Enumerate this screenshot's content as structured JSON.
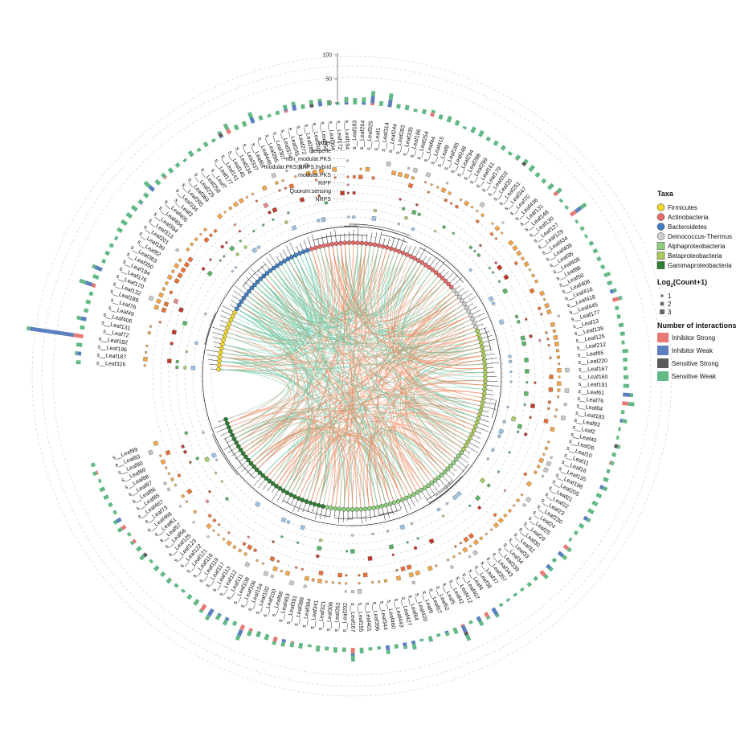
{
  "figure": {
    "leaves_order": [
      "s__Leaf326",
      "s__Leaf187",
      "s__Leaf196",
      "s__Leaf182",
      "s__Leaf72",
      "s__Leaf131",
      "s__Leaf406",
      "s__Leaf49",
      "s__Leaf76",
      "s__Leaf189",
      "s__Leaf132",
      "s__Leaf170",
      "s__Leaf176",
      "s__Leaf194",
      "s__Leaf350",
      "s__Leaf363",
      "s__Leaf82",
      "s__Leaf180",
      "s__Leaf201",
      "s__Leaf313",
      "s__Leaf394",
      "s__Leaf404",
      "s__Leaf405",
      "s__Leaf3",
      "s__Leaf334",
      "s__Leaf395",
      "s__Leaf369",
      "s__Leaf225",
      "s__Leaf258",
      "s__Leaf7",
      "s__Leaf177",
      "s__Leaf141",
      "s__Leaf145",
      "s__Leaf234",
      "s__Leaf337",
      "s__Leaf69",
      "s__Leaf446",
      "s__Leaf285",
      "s__Leaf307",
      "s__Leaf374",
      "s__Leaf245",
      "s__Leaf272",
      "s__Leaf289",
      "s__Leaf291",
      "s__Leaf350",
      "s__Leaf304",
      "s__Leaf172",
      "s__Leaf154",
      "s__Leaf183",
      "s__Leaf264",
      "s__Leaf325",
      "s__Leaf1",
      "s__Leaf314",
      "s__Leaf244",
      "s__Leaf283",
      "s__Leaf335",
      "s__Leaf186",
      "s__Leaf254",
      "s__Leaf44",
      "s__Leaf415",
      "s__Leaf8",
      "s__Leaf185",
      "s__Leaf248",
      "s__Leaf294",
      "s__Leaf298",
      "s__Leaf299",
      "s__Leaf161",
      "s__Leaf179",
      "s__Leaf203",
      "s__Leaf20",
      "s__Leaf251",
      "s__Leaf347",
      "s__Leaf70",
      "s__Leaf436",
      "s__Leaf131",
      "s__Leaf148",
      "s__Leaf130",
      "s__Leaf127",
      "s__Leaf129",
      "s__Leaf434",
      "s__Leaf408",
      "s__Leaf35",
      "s__Leaf408",
      "s__Leaf88",
      "s__Leaf50",
      "s__Leaf408",
      "s__Leaf416",
      "s__Leaf418",
      "s__Leaf445",
      "s__Leaf177",
      "s__Leaf13",
      "s__Leaf139",
      "s__Leaf125",
      "s__Leaf212",
      "s__Leaf65",
      "s__Leaf220",
      "s__Leaf167",
      "s__Leaf160",
      "s__Leaf191",
      "s__Leaf61",
      "s__Leaf76",
      "s__Leaf84",
      "s__Leaf183",
      "s__Leaf93",
      "s__Leaf2",
      "s__Leaf40",
      "s__Leaf26",
      "s__Leaf10",
      "s__Leaf11",
      "s__Leaf16",
      "s__Leaf135",
      "s__Leaf198",
      "s__Leaf205",
      "s__Leaf21",
      "s__Leaf22",
      "s__Leaf23",
      "s__Leaf230",
      "s__Leaf24",
      "s__Leaf25",
      "s__Leaf29",
      "s__Leaf30",
      "s__Leaf32",
      "s__Leaf33",
      "s__Leaf34",
      "s__Leaf339",
      "s__Leaf343",
      "s__Leaf357",
      "s__Leaf37",
      "s__Leaf38",
      "s__Leaf4",
      "s__Leaf407",
      "s__Leaf412",
      "s__Leaf42",
      "s__Leaf5",
      "s__Leaf62",
      "s__Leaf67",
      "s__Leaf9",
      "s__Leaf420",
      "s__Leaf64",
      "s__Leaf427",
      "s__Leaf443",
      "s__Leaf460",
      "s__Leaf344",
      "s__Leaf396",
      "s__Leaf401",
      "s__Leaf155",
      "s__Leaf167",
      "s__Leaf202",
      "s__Leaf262",
      "s__Leaf306",
      "s__Leaf321",
      "s__Leaf341",
      "s__Leaf384",
      "s__Leaf388",
      "s__Leaf391",
      "s__Leaf453",
      "s__Leaf68",
      "s__Leaf100",
      "s__Leaf102",
      "s__Leaf104",
      "s__Leaf106",
      "s__Leaf108",
      "s__Leaf111",
      "s__Leaf112",
      "s__Leaf113",
      "s__Leaf117",
      "s__Leaf119",
      "s__Leaf118",
      "s__Leaf121",
      "s__Leaf122",
      "s__Leaf123",
      "s__Leaf125",
      "s__Leaf56",
      "s__Leaf57",
      "s__Leaf61",
      "s__Leaf466",
      "s__Leaf73",
      "s__Leaf467",
      "s__Leaf85",
      "s__Leaf86",
      "s__Leaf87",
      "s__Leaf88",
      "s__Leaf89",
      "s__Leaf90",
      "s__Leaf83",
      "s__Leaf99"
    ],
    "ring_labels": [
      "other",
      "terpene",
      "non_modular.PKS",
      "modular.PKS.NRPS.hybrid",
      "modular.PKS",
      "RiPP",
      "Quorum.sensing",
      "NRPS"
    ],
    "bar_axis_ticks": [
      "0",
      "50",
      "100"
    ],
    "taxa_colors": {
      "Firmicutes": "#f2d72a",
      "Actinobacteria": "#e8696a",
      "Bacteroidetes": "#3f7fc1",
      "Deinococcus-Thermus": "#cfcfcf",
      "Alphaproteobacteria": "#8fcf7e",
      "Betaproteobacteria": "#a9cc5a",
      "Gammaproteobacteria": "#2e7d32"
    },
    "ring_colors": {
      "other": "#c7c7c7",
      "terpene": "#f2a54a",
      "non_modular.PKS": "#e8733a",
      "modular.PKS.NRPS.hybrid": "#e7898c",
      "modular.PKS": "#c0392b",
      "RiPP": "#5bb36a",
      "Quorum.sensing": "#a6cc6a",
      "NRPS": "#9cc3e4"
    },
    "link_colors": {
      "inhibitor": "#f08a62",
      "sensitive": "#6fc9a8"
    }
  },
  "legend": {
    "taxa_title": "Taxa",
    "taxa": [
      {
        "name": "Firmicutes",
        "color": "#f2d72a"
      },
      {
        "name": "Actinobacteria",
        "color": "#e8696a"
      },
      {
        "name": "Bacteroidetes",
        "color": "#3f7fc1"
      },
      {
        "name": "Deinococcus-Thermus",
        "color": "#cfcfcf"
      },
      {
        "name": "Alphaproteobacteria",
        "color": "#8fcf7e"
      },
      {
        "name": "Betaproteobacteria",
        "color": "#a9cc5a"
      },
      {
        "name": "Gammaproteobacteria",
        "color": "#2e7d32"
      }
    ],
    "count_title_prefix": "Log",
    "count_title_sub": "2",
    "count_title_suffix": "(Count+1)",
    "count_items": [
      "1",
      "2",
      "3"
    ],
    "interactions_title": "Number of interactions",
    "interactions": [
      {
        "name": "Inhibitor Strong",
        "color": "#e87a76"
      },
      {
        "name": "Inhibitor Weak",
        "color": "#5b7fbf"
      },
      {
        "name": "Sensitive Strong",
        "color": "#5a5a5a"
      },
      {
        "name": "Sensitive Weak",
        "color": "#63b985"
      }
    ]
  }
}
